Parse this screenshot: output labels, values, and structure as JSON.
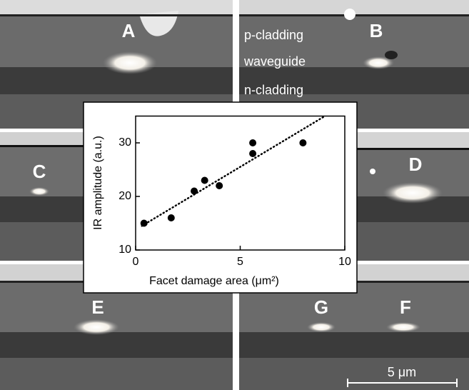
{
  "panels": {
    "labels": [
      "A",
      "B",
      "C",
      "D",
      "E",
      "G",
      "F"
    ]
  },
  "layers": [
    "p-cladding",
    "waveguide",
    "n-cladding"
  ],
  "scale_bar": "5 μm",
  "chart_data": {
    "type": "scatter",
    "x_label": "Facet damage area (μm²)",
    "y_label": "IR amplitude (a.u.)",
    "x": [
      0.4,
      1.7,
      2.8,
      3.3,
      4.0,
      5.6,
      5.6,
      8.0
    ],
    "values": [
      15,
      16,
      21,
      23,
      22,
      28,
      30,
      30
    ],
    "color": "#000000",
    "xlim": [
      0,
      10
    ],
    "xticks": [
      0,
      5,
      10
    ],
    "ylim": [
      10,
      35
    ],
    "yticks": [
      10,
      20,
      30
    ],
    "trendline": {
      "x": [
        0.3,
        9.05
      ],
      "y": [
        14.5,
        35
      ]
    }
  }
}
